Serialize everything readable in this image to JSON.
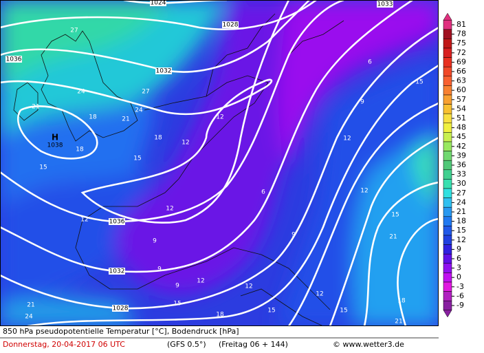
{
  "map": {
    "high": {
      "symbol": "H",
      "pressure": "1038"
    },
    "isobar_labels": [
      "1024",
      "1028",
      "1032",
      "1036",
      "1036",
      "1032",
      "1028",
      "1033"
    ],
    "temp_labels": [
      "27",
      "24",
      "27",
      "21",
      "18",
      "21",
      "24",
      "18",
      "18",
      "15",
      "15",
      "12",
      "12",
      "12",
      "12",
      "9",
      "6",
      "9",
      "6",
      "9",
      "12",
      "15",
      "12",
      "15",
      "21",
      "9",
      "9",
      "12",
      "12",
      "15",
      "18",
      "15",
      "12",
      "15",
      "18",
      "21",
      "21",
      "24"
    ]
  },
  "colorbar": [
    {
      "value": 81,
      "color": "#e0307f"
    },
    {
      "value": 78,
      "color": "#a01020"
    },
    {
      "value": 75,
      "color": "#c01818"
    },
    {
      "value": 72,
      "color": "#d82020"
    },
    {
      "value": 69,
      "color": "#e83020"
    },
    {
      "value": 66,
      "color": "#f04828"
    },
    {
      "value": 63,
      "color": "#f86030"
    },
    {
      "value": 60,
      "color": "#f88030"
    },
    {
      "value": 57,
      "color": "#f8a030"
    },
    {
      "value": 54,
      "color": "#f8c030"
    },
    {
      "value": 51,
      "color": "#f8e040"
    },
    {
      "value": 48,
      "color": "#f0f040"
    },
    {
      "value": 45,
      "color": "#c8f050"
    },
    {
      "value": 42,
      "color": "#98e860"
    },
    {
      "value": 39,
      "color": "#70d870"
    },
    {
      "value": 36,
      "color": "#50c878"
    },
    {
      "value": 33,
      "color": "#40d090"
    },
    {
      "value": 30,
      "color": "#38e0b0"
    },
    {
      "value": 27,
      "color": "#30e0e0"
    },
    {
      "value": 24,
      "color": "#30c0f0"
    },
    {
      "value": 21,
      "color": "#2898f0"
    },
    {
      "value": 18,
      "color": "#2078f0"
    },
    {
      "value": 15,
      "color": "#2058e8"
    },
    {
      "value": 12,
      "color": "#2040e0"
    },
    {
      "value": 9,
      "color": "#3020e0"
    },
    {
      "value": 6,
      "color": "#6010e8"
    },
    {
      "value": 3,
      "color": "#9010f0"
    },
    {
      "value": 0,
      "color": "#c010f0"
    },
    {
      "value": -3,
      "color": "#e018e0"
    },
    {
      "value": -6,
      "color": "#b020c0"
    },
    {
      "value": -9,
      "color": "#8820a0"
    }
  ],
  "footer": {
    "line1": "850 hPa pseudopotentielle Temperatur [°C], Bodendruck [hPa]",
    "date": "Donnerstag, 20-04-2017  06 UTC",
    "model": "(GFS 0.5°)",
    "run": "(Freitag 06 + 144)",
    "copyright": "© www.wetter3.de"
  }
}
